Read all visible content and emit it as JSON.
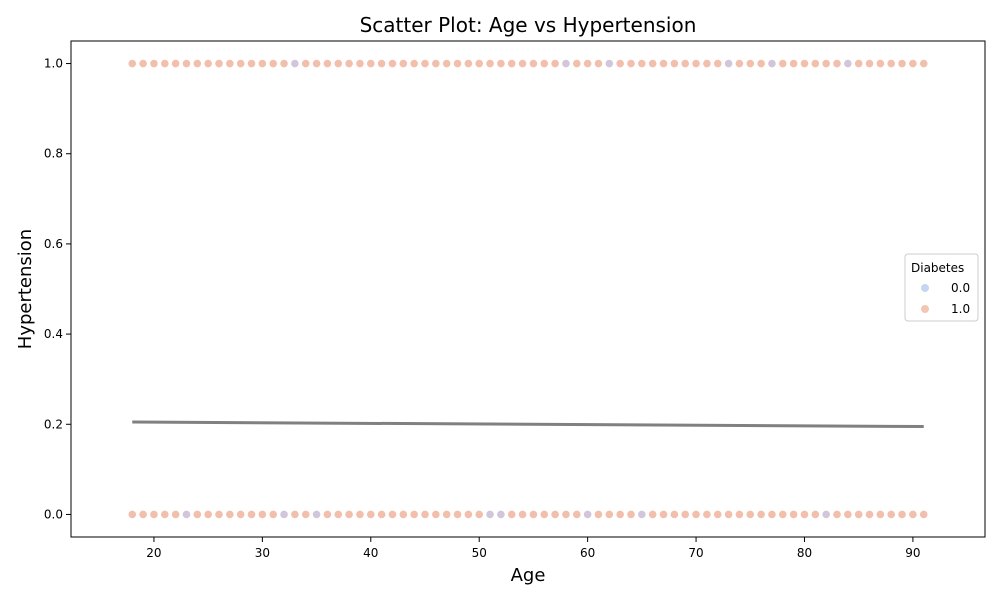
{
  "chart_data": {
    "type": "scatter",
    "title": "Scatter Plot: Age vs Hypertension",
    "xlabel": "Age",
    "ylabel": "Hypertension",
    "xlim": [
      12.35,
      96.65
    ],
    "ylim": [
      -0.05,
      1.05
    ],
    "xticks": [
      "20",
      "30",
      "40",
      "50",
      "60",
      "70",
      "80",
      "90"
    ],
    "yticks": [
      "0.0",
      "0.2",
      "0.4",
      "0.6",
      "0.8",
      "1.0"
    ],
    "grid": false,
    "legend": {
      "title": "Diabetes",
      "placement": "center-right",
      "entries": [
        {
          "label": "0.0",
          "color": "#c5d7f0"
        },
        {
          "label": "1.0",
          "color": "#f3c6b3"
        }
      ]
    },
    "series": [
      {
        "name": "1.0",
        "color": "#f0bca6",
        "points_y1_x": [
          18,
          19,
          20,
          21,
          22,
          23,
          24,
          25,
          26,
          27,
          28,
          29,
          30,
          31,
          32,
          34,
          35,
          36,
          37,
          38,
          39,
          40,
          41,
          42,
          43,
          44,
          45,
          46,
          47,
          48,
          49,
          50,
          51,
          52,
          53,
          54,
          55,
          56,
          57,
          59,
          60,
          61,
          63,
          64,
          65,
          66,
          67,
          68,
          69,
          70,
          71,
          72,
          74,
          75,
          76,
          78,
          79,
          80,
          81,
          82,
          83,
          85,
          86,
          87,
          88,
          89,
          90,
          91
        ],
        "points_y0_x": [
          18,
          19,
          20,
          21,
          22,
          24,
          25,
          26,
          27,
          28,
          29,
          30,
          31,
          33,
          34,
          36,
          37,
          38,
          39,
          40,
          41,
          42,
          43,
          44,
          45,
          46,
          47,
          48,
          49,
          50,
          53,
          54,
          55,
          56,
          57,
          58,
          59,
          61,
          62,
          63,
          64,
          66,
          67,
          68,
          69,
          70,
          71,
          72,
          73,
          74,
          75,
          76,
          77,
          78,
          79,
          80,
          81,
          83,
          84,
          85,
          86,
          87,
          88,
          89,
          90,
          91
        ]
      },
      {
        "name": "0.0",
        "color": "#cfc3d8",
        "points_y1_x": [
          33,
          58,
          62,
          73,
          77,
          84
        ],
        "points_y0_x": [
          23,
          32,
          35,
          51,
          52,
          60,
          65,
          82
        ]
      }
    ],
    "trend_line": {
      "x": [
        18,
        91
      ],
      "y": [
        0.205,
        0.195
      ],
      "color": "#808080"
    }
  }
}
